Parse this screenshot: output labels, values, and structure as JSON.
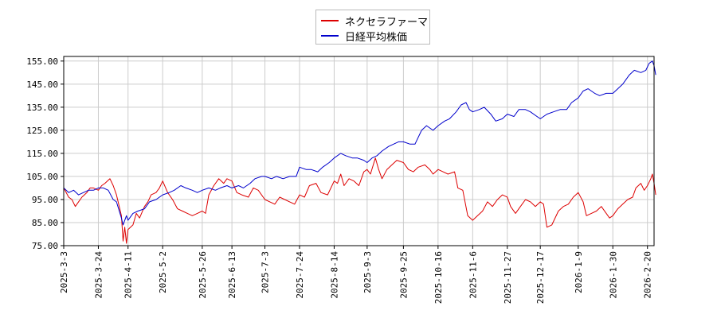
{
  "chart_data": {
    "type": "line",
    "title": "",
    "xlabel": "",
    "ylabel": "",
    "x_range": [
      "2025-03-03",
      "2026-02-24"
    ],
    "ylim": [
      75,
      157
    ],
    "yticks": [
      "75.00",
      "85.00",
      "95.00",
      "105.00",
      "115.00",
      "125.00",
      "135.00",
      "145.00",
      "155.00"
    ],
    "xticks": [
      "2025-3-3",
      "2025-3-24",
      "2025-4-11",
      "2025-5-2",
      "2025-5-26",
      "2025-6-13",
      "2025-7-3",
      "2025-7-24",
      "2025-8-14",
      "2025-9-3",
      "2025-9-25",
      "2025-10-16",
      "2025-11-6",
      "2025-11-27",
      "2025-12-17",
      "2026-1-9",
      "2026-1-30",
      "2026-2-20"
    ],
    "grid": true,
    "legend_position": "top-center",
    "series": [
      {
        "name": "ネクセラファーマ",
        "color": "#dd0000",
        "points": [
          [
            "2025-03-03",
            100
          ],
          [
            "2025-03-06",
            96
          ],
          [
            "2025-03-08",
            95
          ],
          [
            "2025-03-10",
            92
          ],
          [
            "2025-03-12",
            94
          ],
          [
            "2025-03-14",
            96
          ],
          [
            "2025-03-17",
            98
          ],
          [
            "2025-03-19",
            100
          ],
          [
            "2025-03-21",
            100
          ],
          [
            "2025-03-24",
            99
          ],
          [
            "2025-03-26",
            101
          ],
          [
            "2025-03-28",
            102
          ],
          [
            "2025-03-31",
            104
          ],
          [
            "2025-04-02",
            101
          ],
          [
            "2025-04-04",
            97
          ],
          [
            "2025-04-07",
            88
          ],
          [
            "2025-04-08",
            77
          ],
          [
            "2025-04-09",
            83
          ],
          [
            "2025-04-10",
            76
          ],
          [
            "2025-04-11",
            82
          ],
          [
            "2025-04-14",
            84
          ],
          [
            "2025-04-16",
            89
          ],
          [
            "2025-04-18",
            87
          ],
          [
            "2025-04-21",
            92
          ],
          [
            "2025-04-23",
            94
          ],
          [
            "2025-04-25",
            97
          ],
          [
            "2025-04-28",
            98
          ],
          [
            "2025-04-30",
            100
          ],
          [
            "2025-05-02",
            103
          ],
          [
            "2025-05-05",
            98
          ],
          [
            "2025-05-08",
            95
          ],
          [
            "2025-05-11",
            91
          ],
          [
            "2025-05-14",
            90
          ],
          [
            "2025-05-17",
            89
          ],
          [
            "2025-05-20",
            88
          ],
          [
            "2025-05-23",
            89
          ],
          [
            "2025-05-26",
            90
          ],
          [
            "2025-05-28",
            89
          ],
          [
            "2025-05-30",
            97
          ],
          [
            "2025-06-02",
            101
          ],
          [
            "2025-06-05",
            104
          ],
          [
            "2025-06-08",
            102
          ],
          [
            "2025-06-10",
            104
          ],
          [
            "2025-06-13",
            103
          ],
          [
            "2025-06-16",
            98
          ],
          [
            "2025-06-19",
            97
          ],
          [
            "2025-06-23",
            96
          ],
          [
            "2025-06-26",
            100
          ],
          [
            "2025-06-29",
            99
          ],
          [
            "2025-07-03",
            95
          ],
          [
            "2025-07-06",
            94
          ],
          [
            "2025-07-09",
            93
          ],
          [
            "2025-07-12",
            96
          ],
          [
            "2025-07-15",
            95
          ],
          [
            "2025-07-18",
            94
          ],
          [
            "2025-07-21",
            93
          ],
          [
            "2025-07-24",
            97
          ],
          [
            "2025-07-27",
            96
          ],
          [
            "2025-07-30",
            101
          ],
          [
            "2025-08-03",
            102
          ],
          [
            "2025-08-06",
            98
          ],
          [
            "2025-08-10",
            97
          ],
          [
            "2025-08-14",
            103
          ],
          [
            "2025-08-16",
            102
          ],
          [
            "2025-08-18",
            106
          ],
          [
            "2025-08-20",
            101
          ],
          [
            "2025-08-23",
            104
          ],
          [
            "2025-08-26",
            103
          ],
          [
            "2025-08-29",
            101
          ],
          [
            "2025-09-01",
            107
          ],
          [
            "2025-09-03",
            108
          ],
          [
            "2025-09-05",
            106
          ],
          [
            "2025-09-08",
            113
          ],
          [
            "2025-09-10",
            108
          ],
          [
            "2025-09-12",
            104
          ],
          [
            "2025-09-15",
            108
          ],
          [
            "2025-09-18",
            110
          ],
          [
            "2025-09-21",
            112
          ],
          [
            "2025-09-25",
            111
          ],
          [
            "2025-09-28",
            108
          ],
          [
            "2025-10-01",
            107
          ],
          [
            "2025-10-04",
            109
          ],
          [
            "2025-10-08",
            110
          ],
          [
            "2025-10-11",
            108
          ],
          [
            "2025-10-13",
            106
          ],
          [
            "2025-10-16",
            108
          ],
          [
            "2025-10-19",
            107
          ],
          [
            "2025-10-22",
            106
          ],
          [
            "2025-10-26",
            107
          ],
          [
            "2025-10-28",
            100
          ],
          [
            "2025-10-31",
            99
          ],
          [
            "2025-11-03",
            88
          ],
          [
            "2025-11-06",
            86
          ],
          [
            "2025-11-09",
            88
          ],
          [
            "2025-11-12",
            90
          ],
          [
            "2025-11-15",
            94
          ],
          [
            "2025-11-18",
            92
          ],
          [
            "2025-11-21",
            95
          ],
          [
            "2025-11-24",
            97
          ],
          [
            "2025-11-27",
            96
          ],
          [
            "2025-11-29",
            92
          ],
          [
            "2025-12-02",
            89
          ],
          [
            "2025-12-05",
            92
          ],
          [
            "2025-12-08",
            95
          ],
          [
            "2025-12-11",
            94
          ],
          [
            "2025-12-14",
            92
          ],
          [
            "2025-12-17",
            94
          ],
          [
            "2025-12-19",
            93
          ],
          [
            "2025-12-21",
            83
          ],
          [
            "2025-12-24",
            84
          ],
          [
            "2025-12-28",
            90
          ],
          [
            "2025-12-31",
            92
          ],
          [
            "2026-01-03",
            93
          ],
          [
            "2026-01-06",
            96
          ],
          [
            "2026-01-09",
            98
          ],
          [
            "2026-01-12",
            94
          ],
          [
            "2026-01-14",
            88
          ],
          [
            "2026-01-17",
            89
          ],
          [
            "2026-01-20",
            90
          ],
          [
            "2026-01-23",
            92
          ],
          [
            "2026-01-26",
            89
          ],
          [
            "2026-01-28",
            87
          ],
          [
            "2026-01-30",
            88
          ],
          [
            "2026-02-02",
            91
          ],
          [
            "2026-02-05",
            93
          ],
          [
            "2026-02-08",
            95
          ],
          [
            "2026-02-11",
            96
          ],
          [
            "2026-02-13",
            100
          ],
          [
            "2026-02-16",
            102
          ],
          [
            "2026-02-18",
            99
          ],
          [
            "2026-02-20",
            101
          ],
          [
            "2026-02-22",
            104
          ],
          [
            "2026-02-23",
            106
          ],
          [
            "2026-02-24",
            102
          ],
          [
            "2026-02-25",
            97
          ]
        ]
      },
      {
        "name": "日経平均株価",
        "color": "#0000cc",
        "points": [
          [
            "2025-03-03",
            100
          ],
          [
            "2025-03-06",
            98
          ],
          [
            "2025-03-09",
            99
          ],
          [
            "2025-03-12",
            97
          ],
          [
            "2025-03-15",
            98
          ],
          [
            "2025-03-18",
            99
          ],
          [
            "2025-03-21",
            99
          ],
          [
            "2025-03-24",
            100
          ],
          [
            "2025-03-27",
            100
          ],
          [
            "2025-03-30",
            99
          ],
          [
            "2025-04-02",
            95
          ],
          [
            "2025-04-04",
            94
          ],
          [
            "2025-04-07",
            87
          ],
          [
            "2025-04-08",
            84
          ],
          [
            "2025-04-10",
            88
          ],
          [
            "2025-04-11",
            86
          ],
          [
            "2025-04-14",
            89
          ],
          [
            "2025-04-17",
            90
          ],
          [
            "2025-04-21",
            91
          ],
          [
            "2025-04-24",
            94
          ],
          [
            "2025-04-28",
            95
          ],
          [
            "2025-05-02",
            97
          ],
          [
            "2025-05-06",
            98
          ],
          [
            "2025-05-09",
            99
          ],
          [
            "2025-05-13",
            101
          ],
          [
            "2025-05-16",
            100
          ],
          [
            "2025-05-20",
            99
          ],
          [
            "2025-05-23",
            98
          ],
          [
            "2025-05-26",
            99
          ],
          [
            "2025-05-30",
            100
          ],
          [
            "2025-06-03",
            99
          ],
          [
            "2025-06-06",
            100
          ],
          [
            "2025-06-10",
            101
          ],
          [
            "2025-06-13",
            100
          ],
          [
            "2025-06-17",
            101
          ],
          [
            "2025-06-20",
            100
          ],
          [
            "2025-06-24",
            102
          ],
          [
            "2025-06-27",
            104
          ],
          [
            "2025-07-01",
            105
          ],
          [
            "2025-07-03",
            105
          ],
          [
            "2025-07-07",
            104
          ],
          [
            "2025-07-10",
            105
          ],
          [
            "2025-07-14",
            104
          ],
          [
            "2025-07-18",
            105
          ],
          [
            "2025-07-22",
            105
          ],
          [
            "2025-07-24",
            109
          ],
          [
            "2025-07-28",
            108
          ],
          [
            "2025-07-31",
            108
          ],
          [
            "2025-08-04",
            107
          ],
          [
            "2025-08-07",
            109
          ],
          [
            "2025-08-11",
            111
          ],
          [
            "2025-08-14",
            113
          ],
          [
            "2025-08-18",
            115
          ],
          [
            "2025-08-21",
            114
          ],
          [
            "2025-08-25",
            113
          ],
          [
            "2025-08-28",
            113
          ],
          [
            "2025-09-01",
            112
          ],
          [
            "2025-09-03",
            111
          ],
          [
            "2025-09-06",
            113
          ],
          [
            "2025-09-09",
            114
          ],
          [
            "2025-09-12",
            116
          ],
          [
            "2025-09-16",
            118
          ],
          [
            "2025-09-19",
            119
          ],
          [
            "2025-09-22",
            120
          ],
          [
            "2025-09-25",
            120
          ],
          [
            "2025-09-29",
            119
          ],
          [
            "2025-10-02",
            119
          ],
          [
            "2025-10-06",
            125
          ],
          [
            "2025-10-09",
            127
          ],
          [
            "2025-10-13",
            125
          ],
          [
            "2025-10-16",
            127
          ],
          [
            "2025-10-20",
            129
          ],
          [
            "2025-10-23",
            130
          ],
          [
            "2025-10-27",
            133
          ],
          [
            "2025-10-30",
            136
          ],
          [
            "2025-11-02",
            137
          ],
          [
            "2025-11-04",
            134
          ],
          [
            "2025-11-06",
            133
          ],
          [
            "2025-11-10",
            134
          ],
          [
            "2025-11-13",
            135
          ],
          [
            "2025-11-17",
            132
          ],
          [
            "2025-11-20",
            129
          ],
          [
            "2025-11-24",
            130
          ],
          [
            "2025-11-27",
            132
          ],
          [
            "2025-12-01",
            131
          ],
          [
            "2025-12-04",
            134
          ],
          [
            "2025-12-08",
            134
          ],
          [
            "2025-12-11",
            133
          ],
          [
            "2025-12-15",
            131
          ],
          [
            "2025-12-17",
            130
          ],
          [
            "2025-12-21",
            132
          ],
          [
            "2025-12-25",
            133
          ],
          [
            "2025-12-29",
            134
          ],
          [
            "2026-01-02",
            134
          ],
          [
            "2026-01-05",
            137
          ],
          [
            "2026-01-09",
            139
          ],
          [
            "2026-01-12",
            142
          ],
          [
            "2026-01-15",
            143
          ],
          [
            "2026-01-19",
            141
          ],
          [
            "2026-01-22",
            140
          ],
          [
            "2026-01-26",
            141
          ],
          [
            "2026-01-30",
            141
          ],
          [
            "2026-02-02",
            143
          ],
          [
            "2026-02-05",
            145
          ],
          [
            "2026-02-09",
            149
          ],
          [
            "2026-02-12",
            151
          ],
          [
            "2026-02-16",
            150
          ],
          [
            "2026-02-19",
            151
          ],
          [
            "2026-02-21",
            154
          ],
          [
            "2026-02-23",
            155
          ],
          [
            "2026-02-24",
            153
          ],
          [
            "2026-02-25",
            149
          ]
        ]
      }
    ]
  }
}
